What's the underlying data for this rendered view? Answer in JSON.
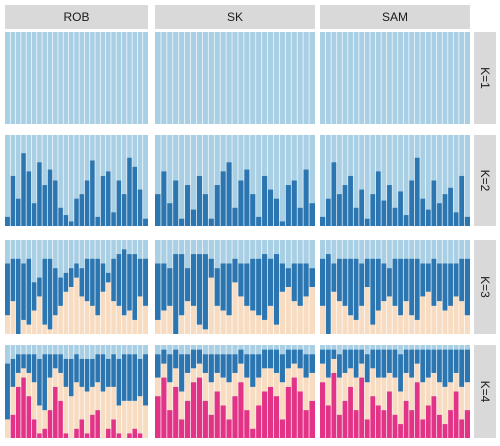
{
  "chart_data": {
    "type": "bar",
    "layout": "faceted stacked bars (grid of populations by K)",
    "populations": [
      "ROB",
      "SK",
      "SAM"
    ],
    "k_labels": [
      "K=1",
      "K=2",
      "K=3",
      "K=4"
    ],
    "cluster_colors": [
      "#a9cfe4",
      "#2b75b0",
      "#f8dcc2",
      "#e23386"
    ],
    "individuals_per_population": 27,
    "ylim": [
      0,
      1
    ],
    "values_note": "Each bar is one individual; stacked ancestry proportions (q) per cluster, reading bottom to top.",
    "panels": {
      "K=1": {
        "ROB": [
          [
            1
          ]
        ],
        "SK": [
          [
            1
          ]
        ],
        "SAM": [
          [
            1
          ]
        ]
      },
      "K=2": {
        "ROB": {
          "cluster2": [
            0.1,
            0.55,
            0.3,
            0.8,
            0.6,
            0.25,
            0.7,
            0.45,
            0.62,
            0.5,
            0.2,
            0.12,
            0.05,
            0.3,
            0.35,
            0.5,
            0.72,
            0.1,
            0.55,
            0.6,
            0.15,
            0.5,
            0.35,
            0.75,
            0.65,
            0.4,
            0.08
          ]
        },
        "SK": {
          "cluster2": [
            0.35,
            0.6,
            0.25,
            0.5,
            0.08,
            0.45,
            0.18,
            0.55,
            0.35,
            0.08,
            0.45,
            0.6,
            0.7,
            0.2,
            0.5,
            0.62,
            0.35,
            0.1,
            0.55,
            0.4,
            0.3,
            0.05,
            0.45,
            0.5,
            0.2,
            0.62,
            0.25
          ]
        },
        "SAM": {
          "cluster2": [
            0.1,
            0.3,
            0.7,
            0.35,
            0.45,
            0.55,
            0.2,
            0.4,
            0.08,
            0.35,
            0.6,
            0.28,
            0.45,
            0.2,
            0.38,
            0.12,
            0.5,
            0.75,
            0.3,
            0.18,
            0.5,
            0.25,
            0.35,
            0.42,
            0.15,
            0.55,
            0.1
          ]
        }
      },
      "K=3": {
        "ROB_note": "cluster order bottom→top: peach, dark blue, light blue",
        "ROB": {
          "peach": [
            0.2,
            0.35,
            0.0,
            0.15,
            0.1,
            0.25,
            0.4,
            0.1,
            0.05,
            0.2,
            0.3,
            0.45,
            0.5,
            0.6,
            0.4,
            0.35,
            0.3,
            0.2,
            0.45,
            0.55,
            0.35,
            0.3,
            0.2,
            0.25,
            0.15,
            0.4,
            0.3
          ],
          "darkblue": [
            0.55,
            0.45,
            0.8,
            0.6,
            0.7,
            0.3,
            0.2,
            0.7,
            0.75,
            0.5,
            0.3,
            0.2,
            0.2,
            0.15,
            0.3,
            0.45,
            0.5,
            0.6,
            0.3,
            0.1,
            0.45,
            0.55,
            0.7,
            0.6,
            0.7,
            0.4,
            0.5
          ]
        },
        "SK": {
          "peach": [
            0.15,
            0.25,
            0.3,
            0.0,
            0.2,
            0.35,
            0.3,
            0.1,
            0.05,
            0.6,
            0.3,
            0.25,
            0.2,
            0.55,
            0.4,
            0.3,
            0.25,
            0.2,
            0.15,
            0.3,
            0.1,
            0.45,
            0.5,
            0.35,
            0.3,
            0.4,
            0.5
          ],
          "darkblue": [
            0.6,
            0.5,
            0.4,
            0.85,
            0.65,
            0.35,
            0.55,
            0.75,
            0.8,
            0.2,
            0.4,
            0.5,
            0.55,
            0.25,
            0.35,
            0.45,
            0.55,
            0.6,
            0.7,
            0.5,
            0.75,
            0.3,
            0.2,
            0.4,
            0.45,
            0.35,
            0.2
          ]
        },
        "SAM": {
          "peach": [
            0.3,
            0.0,
            0.45,
            0.35,
            0.3,
            0.2,
            0.15,
            0.3,
            0.5,
            0.1,
            0.25,
            0.35,
            0.4,
            0.3,
            0.2,
            0.35,
            0.2,
            0.15,
            0.4,
            0.45,
            0.3,
            0.35,
            0.25,
            0.3,
            0.4,
            0.35,
            0.2
          ],
          "darkblue": [
            0.5,
            0.85,
            0.3,
            0.45,
            0.5,
            0.6,
            0.65,
            0.45,
            0.3,
            0.7,
            0.55,
            0.4,
            0.3,
            0.5,
            0.6,
            0.45,
            0.6,
            0.65,
            0.35,
            0.3,
            0.5,
            0.4,
            0.5,
            0.45,
            0.35,
            0.45,
            0.6
          ]
        }
      },
      "K=4": {
        "ROB": {
          "pink": [
            0.0,
            0.25,
            0.55,
            0.65,
            0.45,
            0.2,
            0.05,
            0.1,
            0.3,
            0.55,
            0.4,
            0.05,
            0.0,
            0.1,
            0.2,
            0.05,
            0.25,
            0.3,
            0.0,
            0.1,
            0.2,
            0.05,
            0.0,
            0.05,
            0.1,
            0.05,
            0.0
          ],
          "peach": [
            0.2,
            0.3,
            0.15,
            0.1,
            0.25,
            0.4,
            0.3,
            0.2,
            0.35,
            0.2,
            0.3,
            0.5,
            0.45,
            0.5,
            0.35,
            0.45,
            0.3,
            0.3,
            0.5,
            0.45,
            0.35,
            0.3,
            0.4,
            0.35,
            0.3,
            0.4,
            0.35
          ],
          "darkblue": [
            0.6,
            0.3,
            0.2,
            0.15,
            0.2,
            0.3,
            0.5,
            0.6,
            0.25,
            0.15,
            0.2,
            0.3,
            0.4,
            0.3,
            0.3,
            0.35,
            0.3,
            0.3,
            0.4,
            0.3,
            0.35,
            0.5,
            0.5,
            0.5,
            0.5,
            0.4,
            0.55
          ]
        },
        "SK": {
          "pink": [
            0.45,
            0.65,
            0.3,
            0.55,
            0.2,
            0.4,
            0.6,
            0.65,
            0.4,
            0.25,
            0.5,
            0.35,
            0.2,
            0.45,
            0.6,
            0.3,
            0.1,
            0.35,
            0.5,
            0.55,
            0.45,
            0.2,
            0.55,
            0.65,
            0.5,
            0.3,
            0.4
          ],
          "peach": [
            0.2,
            0.15,
            0.3,
            0.2,
            0.3,
            0.3,
            0.15,
            0.15,
            0.3,
            0.35,
            0.2,
            0.3,
            0.4,
            0.25,
            0.2,
            0.35,
            0.45,
            0.3,
            0.25,
            0.2,
            0.25,
            0.4,
            0.2,
            0.15,
            0.25,
            0.35,
            0.3
          ],
          "darkblue": [
            0.25,
            0.15,
            0.3,
            0.2,
            0.4,
            0.2,
            0.2,
            0.15,
            0.2,
            0.3,
            0.2,
            0.25,
            0.3,
            0.2,
            0.15,
            0.25,
            0.35,
            0.25,
            0.2,
            0.2,
            0.25,
            0.3,
            0.2,
            0.15,
            0.2,
            0.25,
            0.2
          ]
        },
        "SAM": {
          "pink": [
            0.6,
            0.35,
            0.7,
            0.25,
            0.4,
            0.55,
            0.3,
            0.65,
            0.2,
            0.45,
            0.35,
            0.3,
            0.5,
            0.25,
            0.15,
            0.4,
            0.3,
            0.6,
            0.2,
            0.35,
            0.45,
            0.25,
            0.15,
            0.3,
            0.5,
            0.2,
            0.3
          ],
          "peach": [
            0.2,
            0.3,
            0.15,
            0.4,
            0.3,
            0.2,
            0.35,
            0.15,
            0.4,
            0.3,
            0.3,
            0.35,
            0.2,
            0.4,
            0.35,
            0.3,
            0.35,
            0.2,
            0.4,
            0.3,
            0.25,
            0.35,
            0.4,
            0.3,
            0.2,
            0.35,
            0.3
          ],
          "darkblue": [
            0.15,
            0.3,
            0.1,
            0.25,
            0.25,
            0.2,
            0.3,
            0.15,
            0.3,
            0.2,
            0.3,
            0.3,
            0.25,
            0.3,
            0.4,
            0.25,
            0.3,
            0.15,
            0.35,
            0.3,
            0.25,
            0.35,
            0.4,
            0.35,
            0.25,
            0.4,
            0.35
          ]
        }
      }
    }
  }
}
